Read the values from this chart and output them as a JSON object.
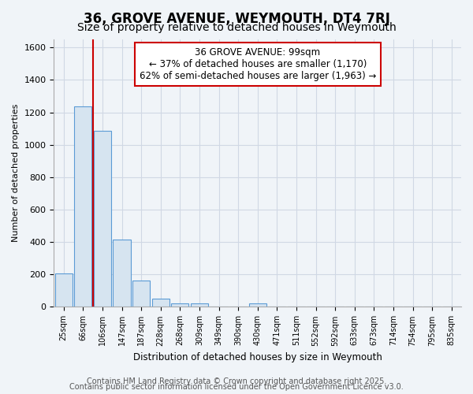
{
  "title": "36, GROVE AVENUE, WEYMOUTH, DT4 7RJ",
  "subtitle": "Size of property relative to detached houses in Weymouth",
  "xlabel": "Distribution of detached houses by size in Weymouth",
  "ylabel": "Number of detached properties",
  "categories": [
    "25sqm",
    "66sqm",
    "106sqm",
    "147sqm",
    "187sqm",
    "228sqm",
    "268sqm",
    "309sqm",
    "349sqm",
    "390sqm",
    "430sqm",
    "471sqm",
    "511sqm",
    "552sqm",
    "592sqm",
    "633sqm",
    "673sqm",
    "714sqm",
    "754sqm",
    "795sqm",
    "835sqm"
  ],
  "values": [
    205,
    1235,
    1085,
    415,
    165,
    50,
    20,
    20,
    0,
    0,
    20,
    0,
    0,
    0,
    0,
    0,
    0,
    0,
    0,
    0,
    0
  ],
  "bar_color": "#d6e4f0",
  "bar_edge_color": "#5b9bd5",
  "vline_x": 1.5,
  "vline_color": "#cc0000",
  "annotation_text": "36 GROVE AVENUE: 99sqm\n← 37% of detached houses are smaller (1,170)\n62% of semi-detached houses are larger (1,963) →",
  "annotation_box_color": "#ffffff",
  "annotation_box_edge": "#cc0000",
  "ylim": [
    0,
    1650
  ],
  "yticks": [
    0,
    200,
    400,
    600,
    800,
    1000,
    1200,
    1400,
    1600
  ],
  "footer1": "Contains HM Land Registry data © Crown copyright and database right 2025.",
  "footer2": "Contains public sector information licensed under the Open Government Licence v3.0.",
  "background_color": "#f0f4f8",
  "plot_background": "#f0f4f8",
  "grid_color": "#d0d8e4",
  "title_fontsize": 12,
  "subtitle_fontsize": 10,
  "annotation_fontsize": 8.5,
  "footer_fontsize": 7
}
